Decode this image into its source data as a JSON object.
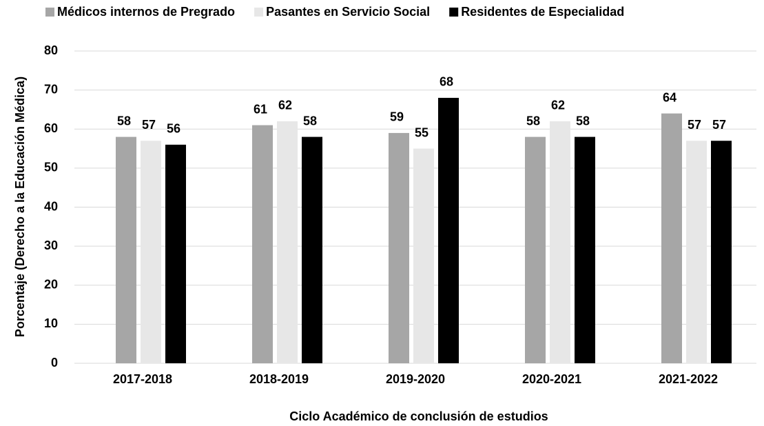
{
  "chart_data": {
    "type": "bar",
    "x_label": "Ciclo Académico de conclusión de estudios",
    "y_label": "Porcentaje (Derecho a la Educación Médica)",
    "categories": [
      "2017-2018",
      "2018-2019",
      "2019-2020",
      "2020-2021",
      "2021-2022"
    ],
    "series": [
      {
        "name": "Médicos internos de Pregrado",
        "color": "#a6a6a6",
        "values": [
          58,
          61,
          59,
          58,
          64
        ]
      },
      {
        "name": "Pasantes en Servicio Social",
        "color": "#e7e7e7",
        "values": [
          57,
          62,
          55,
          62,
          57
        ]
      },
      {
        "name": "Residentes de Especialidad",
        "color": "#000000",
        "values": [
          56,
          58,
          68,
          58,
          57
        ]
      }
    ],
    "ylim": [
      0,
      80
    ],
    "yticks": [
      0,
      10,
      20,
      30,
      40,
      50,
      60,
      70,
      80
    ],
    "grid": true,
    "legend": "top"
  }
}
